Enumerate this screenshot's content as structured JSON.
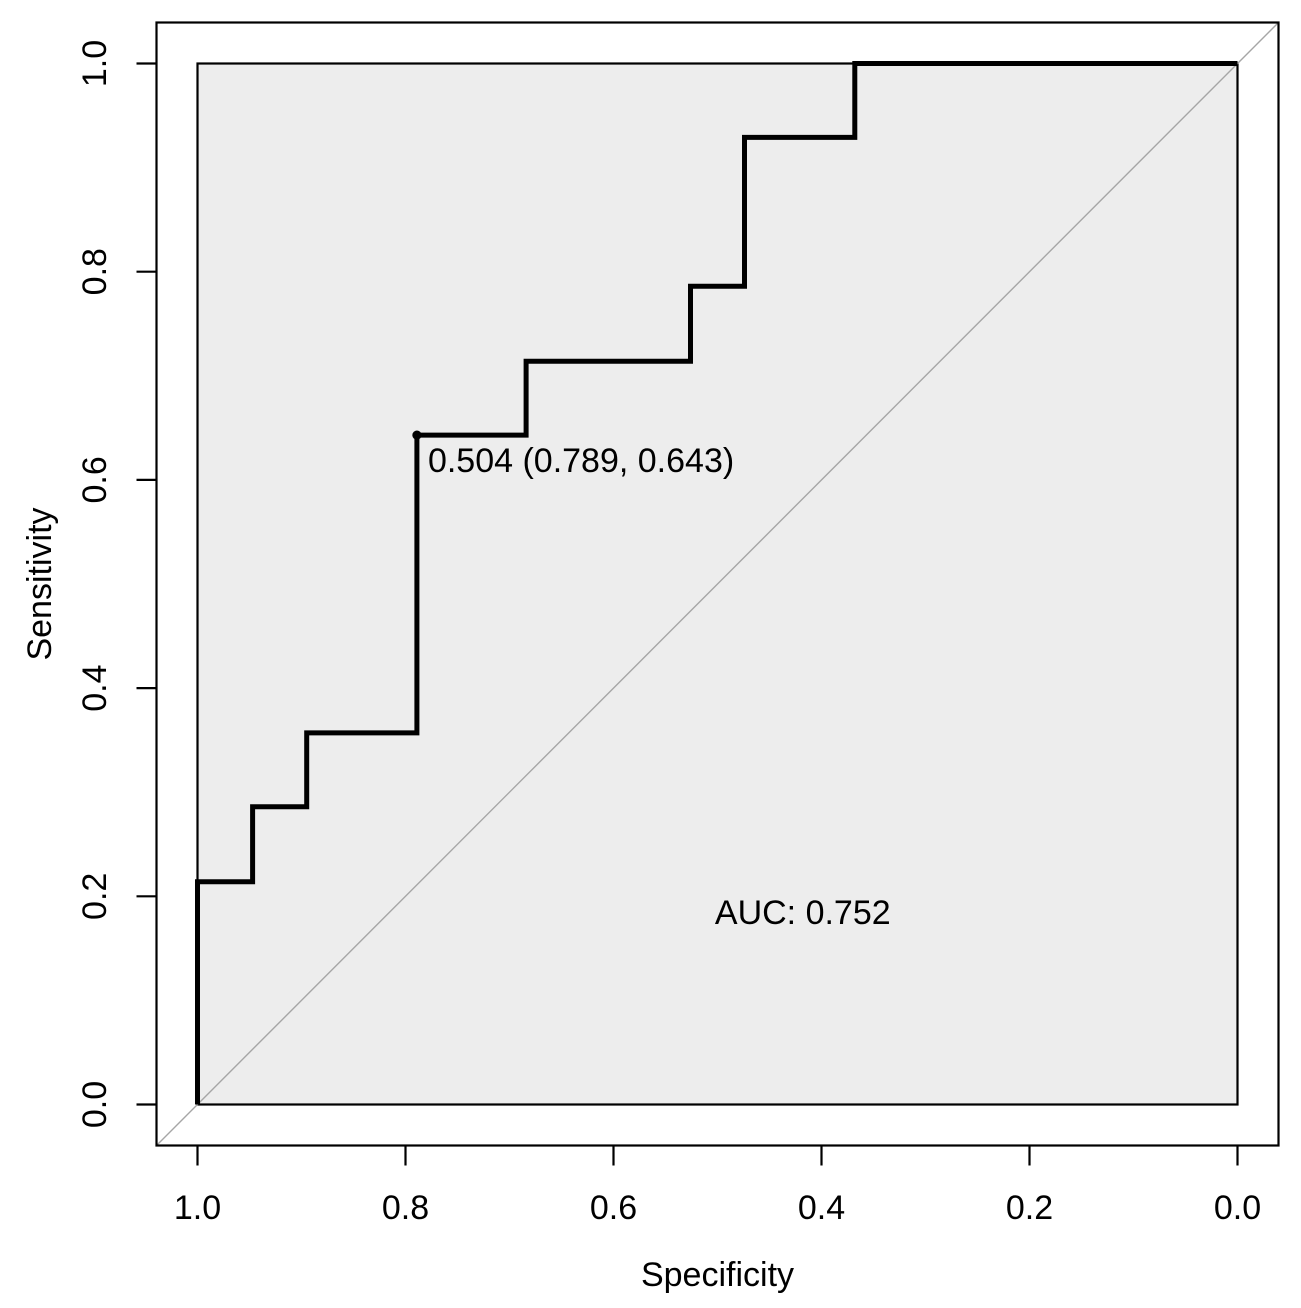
{
  "figure": {
    "kind": "ROC curve plot (R / pROC style)",
    "background": "#ffffff"
  },
  "chart_data": {
    "type": "line",
    "subtype": "roc-step-curve",
    "title": "",
    "xlabel": "Specificity",
    "ylabel": "Sensitivity",
    "x_axis_reversed": true,
    "xlim": [
      1.0,
      0.0
    ],
    "ylim": [
      0.0,
      1.0
    ],
    "x_tick_labels": [
      "1.0",
      "0.8",
      "0.6",
      "0.4",
      "0.2",
      "0.0"
    ],
    "x_tick_values": [
      1.0,
      0.8,
      0.6,
      0.4,
      0.2,
      0.0
    ],
    "y_tick_labels": [
      "0.0",
      "0.2",
      "0.4",
      "0.6",
      "0.8",
      "1.0"
    ],
    "y_tick_values": [
      0.0,
      0.2,
      0.4,
      0.6,
      0.8,
      1.0
    ],
    "grid": false,
    "series": [
      {
        "name": "ROC curve",
        "style": "step",
        "operating_points_spec_sens": [
          [
            1.0,
            0.0
          ],
          [
            1.0,
            0.214
          ],
          [
            0.947,
            0.286
          ],
          [
            0.895,
            0.357
          ],
          [
            0.789,
            0.643
          ],
          [
            0.684,
            0.714
          ],
          [
            0.526,
            0.786
          ],
          [
            0.474,
            0.929
          ],
          [
            0.368,
            1.0
          ],
          [
            0.0,
            1.0
          ]
        ]
      }
    ],
    "diagonal_reference_line": {
      "from_spec_sens": [
        1.0,
        0.0
      ],
      "to_spec_sens": [
        0.0,
        1.0
      ],
      "extends_to_plot_box_corners": true
    },
    "best_threshold": {
      "threshold": 0.504,
      "specificity": 0.789,
      "sensitivity": 0.643,
      "label": "0.504 (0.789, 0.643)"
    },
    "auc": {
      "value": 0.752,
      "label": "AUC: 0.752",
      "label_position_spec_sens": [
        0.418,
        0.185
      ]
    },
    "colors": {
      "panel_fill": "#EDEDED",
      "panel_border": "#000000",
      "curve": "#000000",
      "diagonal": "#A6A6A6",
      "axis": "#000000",
      "text": "#000000"
    }
  }
}
